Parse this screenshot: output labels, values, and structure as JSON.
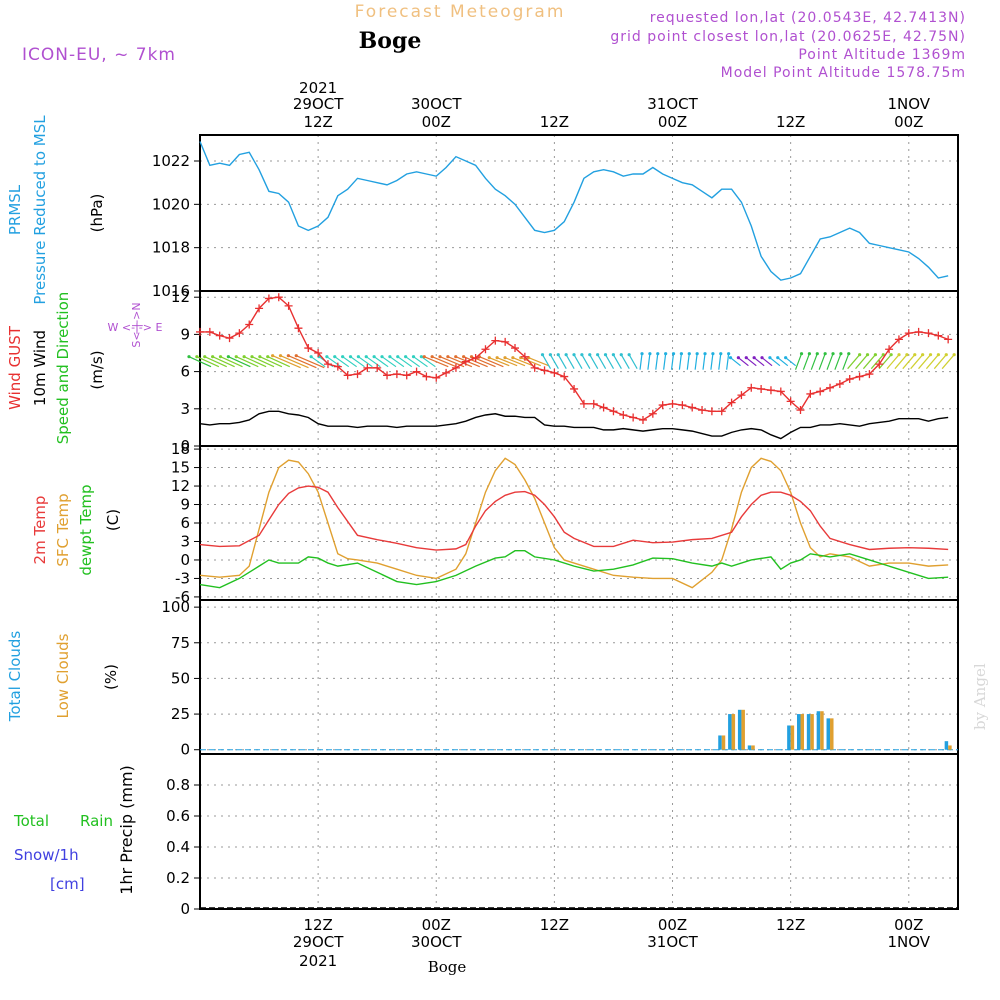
{
  "header": {
    "title": "Forecast Meteogram",
    "location": "Boge",
    "model": "ICON-EU, ~ 7km",
    "requested": "requested lon,lat (20.0543E, 42.7413N)",
    "grid_point": "grid point closest lon,lat (20.0625E, 42.75N)",
    "point_altitude": "Point Altitude 1369m",
    "model_altitude": "Model Point Altitude 1578.75m",
    "watermark": "by Angel",
    "footer_location": "Boge"
  },
  "time_axis": {
    "top_labels": [
      {
        "line1": "2021",
        "line2": "29OCT",
        "line3": "12Z"
      },
      {
        "line1": "",
        "line2": "30OCT",
        "line3": "00Z"
      },
      {
        "line1": "",
        "line2": "",
        "line3": "12Z"
      },
      {
        "line1": "",
        "line2": "31OCT",
        "line3": "00Z"
      },
      {
        "line1": "",
        "line2": "",
        "line3": "12Z"
      },
      {
        "line1": "",
        "line2": "1NOV",
        "line3": "00Z"
      }
    ],
    "bottom_labels": [
      {
        "line1": "12Z",
        "line2": "29OCT",
        "line3": "2021"
      },
      {
        "line1": "00Z",
        "line2": "30OCT",
        "line3": ""
      },
      {
        "line1": "12Z",
        "line2": "",
        "line3": ""
      },
      {
        "line1": "00Z",
        "line2": "31OCT",
        "line3": ""
      },
      {
        "line1": "12Z",
        "line2": "",
        "line3": ""
      },
      {
        "line1": "00Z",
        "line2": "1NOV",
        "line3": ""
      }
    ]
  },
  "colors": {
    "pressure": "#22a0e0",
    "gust": "#e83030",
    "wind10m": "#000000",
    "t2m": "#e83a3a",
    "sfc": "#e0a030",
    "dewpt": "#22c020",
    "total_clouds": "#22a0e0",
    "low_clouds": "#e0a030",
    "rain": "#22c020",
    "snow": "#4040e0",
    "label": "#b050d0",
    "title": "#f0c080"
  },
  "chart_data": [
    {
      "type": "line",
      "panel": "pressure",
      "ylabel_lines": [
        "PRMSL",
        "Pressure Reduced to MSL"
      ],
      "unit": "(hPa)",
      "ylim": [
        1016,
        1023.2
      ],
      "yticks": [
        1016,
        1018,
        1020,
        1022
      ],
      "x_hours_from": "2021-10-29 00Z",
      "series": [
        {
          "name": "PRMSL",
          "x": [
            0,
            1,
            2,
            3,
            4,
            5,
            6,
            7,
            8,
            9,
            10,
            11,
            12,
            13,
            14,
            15,
            16,
            17,
            18,
            19,
            20,
            21,
            22,
            23,
            24,
            25,
            26,
            27,
            28,
            29,
            30,
            31,
            32,
            33,
            34,
            35,
            36,
            37,
            38,
            39,
            40,
            41,
            42,
            43,
            44,
            45,
            46,
            47,
            48,
            49,
            50,
            51,
            52,
            53,
            54,
            55,
            56,
            57,
            58,
            59,
            60,
            61,
            62,
            63,
            64,
            65,
            66,
            67,
            68,
            69,
            70,
            71,
            72,
            73,
            74,
            75,
            76
          ],
          "values": [
            1022.9,
            1021.8,
            1021.9,
            1021.8,
            1022.3,
            1022.4,
            1021.6,
            1020.6,
            1020.5,
            1020.1,
            1019.0,
            1018.8,
            1019.0,
            1019.4,
            1020.4,
            1020.7,
            1021.2,
            1021.1,
            1021.0,
            1020.9,
            1021.1,
            1021.4,
            1021.5,
            1021.4,
            1021.3,
            1021.7,
            1022.2,
            1022.0,
            1021.8,
            1021.2,
            1020.7,
            1020.4,
            1020.0,
            1019.4,
            1018.8,
            1018.7,
            1018.8,
            1019.2,
            1020.1,
            1021.2,
            1021.5,
            1021.6,
            1021.5,
            1021.3,
            1021.4,
            1021.4,
            1021.7,
            1021.4,
            1021.2,
            1021.0,
            1020.9,
            1020.6,
            1020.3,
            1020.7,
            1020.7,
            1020.1,
            1019.0,
            1017.6,
            1016.9,
            1016.5,
            1016.6,
            1016.8,
            1017.6,
            1018.4,
            1018.5,
            1018.7,
            1018.9,
            1018.7,
            1018.2,
            1018.1,
            1018.0,
            1017.9,
            1017.8,
            1017.5,
            1017.1,
            1016.6,
            1016.7
          ]
        }
      ]
    },
    {
      "type": "line",
      "panel": "wind",
      "ylabel_lines": [
        "Wind GUST",
        "10m Wind",
        "Speed and Direction"
      ],
      "unit": "(m/s)",
      "compass": {
        "n": "N",
        "w": "W",
        "e": "E",
        "s": "S"
      },
      "ylim": [
        0,
        12.5
      ],
      "yticks": [
        0,
        3,
        6,
        9,
        12
      ],
      "series": [
        {
          "name": "Wind GUST",
          "marker": "plus",
          "x": [
            0,
            1,
            2,
            3,
            4,
            5,
            6,
            7,
            8,
            9,
            10,
            11,
            12,
            13,
            14,
            15,
            16,
            17,
            18,
            19,
            20,
            21,
            22,
            23,
            24,
            25,
            26,
            27,
            28,
            29,
            30,
            31,
            32,
            33,
            34,
            35,
            36,
            37,
            38,
            39,
            40,
            41,
            42,
            43,
            44,
            45,
            46,
            47,
            48,
            49,
            50,
            51,
            52,
            53,
            54,
            55,
            56,
            57,
            58,
            59,
            60,
            61,
            62,
            63,
            64,
            65,
            66,
            67,
            68,
            69,
            70,
            71,
            72,
            73,
            74,
            75,
            76
          ],
          "values": [
            9.2,
            9.2,
            8.9,
            8.7,
            9.1,
            9.8,
            11.1,
            11.9,
            12.0,
            11.3,
            9.5,
            7.9,
            7.5,
            6.6,
            6.4,
            5.7,
            5.8,
            6.3,
            6.3,
            5.7,
            5.8,
            5.7,
            6.0,
            5.6,
            5.5,
            5.9,
            6.3,
            6.8,
            7.1,
            7.8,
            8.5,
            8.4,
            7.9,
            7.2,
            6.3,
            6.1,
            5.9,
            5.6,
            4.6,
            3.4,
            3.4,
            3.1,
            2.8,
            2.5,
            2.3,
            2.1,
            2.6,
            3.3,
            3.4,
            3.3,
            3.1,
            2.9,
            2.8,
            2.8,
            3.5,
            4.1,
            4.7,
            4.6,
            4.5,
            4.4,
            3.6,
            2.9,
            4.2,
            4.4,
            4.7,
            5.0,
            5.4,
            5.6,
            5.8,
            6.6,
            7.8,
            8.6,
            9.1,
            9.2,
            9.1,
            8.9,
            8.6
          ]
        },
        {
          "name": "10m Wind",
          "x": [
            0,
            1,
            2,
            3,
            4,
            5,
            6,
            7,
            8,
            9,
            10,
            11,
            12,
            13,
            14,
            15,
            16,
            17,
            18,
            19,
            20,
            21,
            22,
            23,
            24,
            25,
            26,
            27,
            28,
            29,
            30,
            31,
            32,
            33,
            34,
            35,
            36,
            37,
            38,
            39,
            40,
            41,
            42,
            43,
            44,
            45,
            46,
            47,
            48,
            49,
            50,
            51,
            52,
            53,
            54,
            55,
            56,
            57,
            58,
            59,
            60,
            61,
            62,
            63,
            64,
            65,
            66,
            67,
            68,
            69,
            70,
            71,
            72,
            73,
            74,
            75,
            76
          ],
          "values": [
            1.8,
            1.7,
            1.8,
            1.8,
            1.9,
            2.1,
            2.6,
            2.8,
            2.8,
            2.6,
            2.5,
            2.3,
            1.8,
            1.6,
            1.6,
            1.6,
            1.5,
            1.6,
            1.6,
            1.6,
            1.5,
            1.6,
            1.6,
            1.6,
            1.6,
            1.7,
            1.8,
            2.0,
            2.3,
            2.5,
            2.6,
            2.4,
            2.4,
            2.3,
            2.3,
            1.7,
            1.6,
            1.6,
            1.5,
            1.5,
            1.5,
            1.3,
            1.3,
            1.4,
            1.3,
            1.2,
            1.3,
            1.4,
            1.4,
            1.3,
            1.2,
            1.0,
            0.8,
            0.8,
            1.1,
            1.3,
            1.4,
            1.3,
            0.9,
            0.6,
            1.1,
            1.5,
            1.5,
            1.7,
            1.7,
            1.8,
            1.7,
            1.6,
            1.8,
            1.9,
            2.0,
            2.2,
            2.2,
            2.2,
            2.0,
            2.2,
            2.3
          ]
        }
      ]
    },
    {
      "type": "line",
      "panel": "temperature",
      "ylabel_lines": [
        "2m Temp",
        "SFC Temp",
        "dewpt Temp"
      ],
      "unit": "(C)",
      "ylim": [
        -6.5,
        18.5
      ],
      "yticks": [
        -6,
        -3,
        0,
        3,
        6,
        9,
        12,
        15,
        18
      ],
      "series": [
        {
          "name": "2m Temp",
          "x": [
            0,
            2,
            4,
            6,
            7,
            8,
            9,
            10,
            11,
            12,
            13,
            14,
            16,
            18,
            20,
            22,
            24,
            26,
            27,
            28,
            29,
            30,
            31,
            32,
            33,
            34,
            35,
            36,
            37,
            38,
            40,
            42,
            44,
            46,
            48,
            50,
            52,
            54,
            55,
            56,
            57,
            58,
            59,
            60,
            61,
            62,
            63,
            64,
            66,
            68,
            70,
            72,
            74,
            76
          ],
          "values": [
            2.5,
            2.2,
            2.3,
            4.0,
            6.5,
            9.0,
            10.8,
            11.7,
            12.0,
            11.8,
            11.0,
            8.5,
            4.0,
            3.3,
            2.7,
            2.0,
            1.6,
            1.8,
            2.5,
            5.5,
            8.0,
            9.5,
            10.5,
            11.0,
            11.1,
            10.5,
            9.0,
            7.0,
            4.5,
            3.5,
            2.2,
            2.2,
            3.2,
            2.8,
            2.9,
            3.3,
            3.5,
            4.5,
            7.0,
            9.0,
            10.5,
            11.0,
            11.0,
            10.5,
            9.5,
            8.0,
            5.5,
            3.5,
            2.5,
            1.7,
            1.9,
            2.0,
            1.9,
            1.7
          ]
        },
        {
          "name": "SFC Temp",
          "x": [
            0,
            2,
            4,
            5,
            6,
            7,
            8,
            9,
            10,
            11,
            12,
            13,
            14,
            15,
            16,
            18,
            20,
            22,
            24,
            26,
            27,
            28,
            29,
            30,
            31,
            32,
            33,
            34,
            35,
            36,
            37,
            38,
            40,
            42,
            44,
            46,
            48,
            50,
            52,
            53,
            54,
            55,
            56,
            57,
            58,
            59,
            60,
            61,
            62,
            63,
            64,
            66,
            68,
            70,
            72,
            74,
            76
          ],
          "values": [
            -2.5,
            -2.8,
            -2.5,
            -1.0,
            5.0,
            11.0,
            15.0,
            16.2,
            15.9,
            14.0,
            11.0,
            6.0,
            1.0,
            0.2,
            0.0,
            -0.5,
            -1.5,
            -2.5,
            -3.0,
            -1.5,
            1.0,
            6.0,
            11.0,
            14.5,
            16.5,
            15.5,
            13.0,
            10.0,
            6.0,
            2.0,
            0.0,
            -0.5,
            -1.5,
            -2.5,
            -2.8,
            -3.0,
            -3.0,
            -4.5,
            -2.0,
            0.0,
            5.0,
            11.0,
            15.0,
            16.5,
            16.0,
            14.5,
            11.0,
            6.0,
            2.0,
            0.5,
            1.0,
            0.5,
            -1.0,
            -0.5,
            -0.5,
            -1.0,
            -0.8
          ]
        },
        {
          "name": "dewpt Temp",
          "x": [
            0,
            2,
            4,
            6,
            7,
            8,
            10,
            11,
            12,
            13,
            14,
            16,
            18,
            20,
            22,
            24,
            26,
            28,
            30,
            31,
            32,
            33,
            34,
            36,
            38,
            40,
            42,
            44,
            46,
            48,
            50,
            52,
            53,
            54,
            56,
            58,
            59,
            60,
            61,
            62,
            64,
            66,
            68,
            70,
            72,
            74,
            76
          ],
          "values": [
            -4.0,
            -4.5,
            -3.0,
            -1.0,
            0.0,
            -0.5,
            -0.5,
            0.5,
            0.3,
            -0.5,
            -1.0,
            -0.5,
            -2.0,
            -3.5,
            -4.0,
            -3.5,
            -2.5,
            -1.0,
            0.3,
            0.5,
            1.5,
            1.5,
            0.5,
            0.0,
            -1.0,
            -1.8,
            -1.5,
            -0.8,
            0.3,
            0.2,
            -0.5,
            -1.0,
            -0.5,
            -1.0,
            0.0,
            0.5,
            -1.5,
            -0.5,
            0.0,
            1.0,
            0.5,
            1.0,
            0.0,
            -1.0,
            -2.0,
            -3.0,
            -2.8
          ]
        }
      ]
    },
    {
      "type": "bar",
      "panel": "clouds",
      "ylabel_lines": [
        "Total Clouds",
        "Low Clouds"
      ],
      "unit": "(%)",
      "ylim": [
        -3,
        105
      ],
      "yticks": [
        0,
        25,
        50,
        75,
        100
      ],
      "x": [
        53,
        54,
        55,
        56,
        60,
        61,
        62,
        63,
        64,
        68,
        76
      ],
      "series": [
        {
          "name": "Total Clouds",
          "values": [
            10,
            25,
            28,
            3,
            17,
            25,
            25,
            27,
            22,
            0,
            6
          ]
        },
        {
          "name": "Low Clouds",
          "values": [
            10,
            25,
            28,
            3,
            17,
            25,
            25,
            27,
            22,
            0,
            3
          ]
        }
      ]
    },
    {
      "type": "bar",
      "panel": "precip",
      "ylabel": "1hr Precip (mm)",
      "legend": {
        "total": "Total",
        "rain": "Rain",
        "snow": "Snow/1h",
        "snow_unit": "[cm]"
      },
      "ylim": [
        0,
        1.0
      ],
      "yticks": [
        0,
        0.2,
        0.4,
        0.6,
        0.8
      ],
      "yticklabels": [
        "0",
        "0.2",
        "0.4",
        "0.6",
        "0.8"
      ],
      "values": []
    }
  ]
}
